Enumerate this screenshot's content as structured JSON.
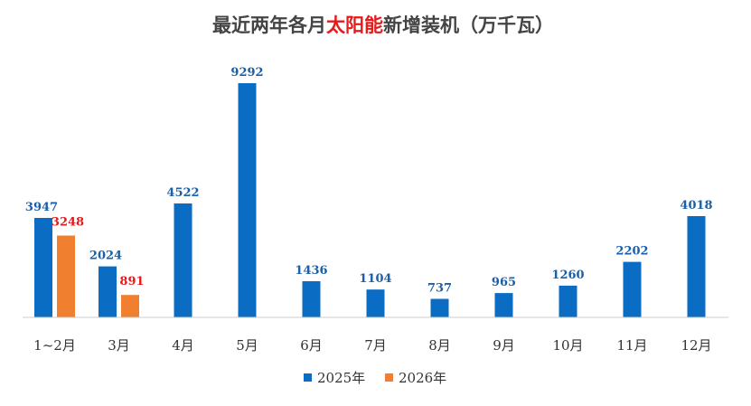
{
  "title": {
    "prefix": "最近两年各月",
    "highlight": "太阳能",
    "suffix": "新增装机（万千瓦）"
  },
  "colors": {
    "series_2025": "#0a6cc2",
    "series_2026": "#f07f2f",
    "label_2025": "#1a5fa8",
    "label_2026": "#e51b1b",
    "title_text": "#444444",
    "title_highlight": "#e51b1b",
    "axis": "#cccccc"
  },
  "chart_data": {
    "type": "bar",
    "categories": [
      "1~2月",
      "3月",
      "4月",
      "5月",
      "6月",
      "7月",
      "8月",
      "9月",
      "10月",
      "11月",
      "12月"
    ],
    "series": [
      {
        "name": "2025年",
        "values": [
          3947,
          2024,
          4522,
          9292,
          1436,
          1104,
          737,
          965,
          1260,
          2202,
          4018
        ]
      },
      {
        "name": "2026年",
        "values": [
          3248,
          891,
          null,
          null,
          null,
          null,
          null,
          null,
          null,
          null,
          null
        ]
      }
    ],
    "ylim": [
      0,
      9500
    ],
    "grid": false,
    "legend": "bottom"
  }
}
